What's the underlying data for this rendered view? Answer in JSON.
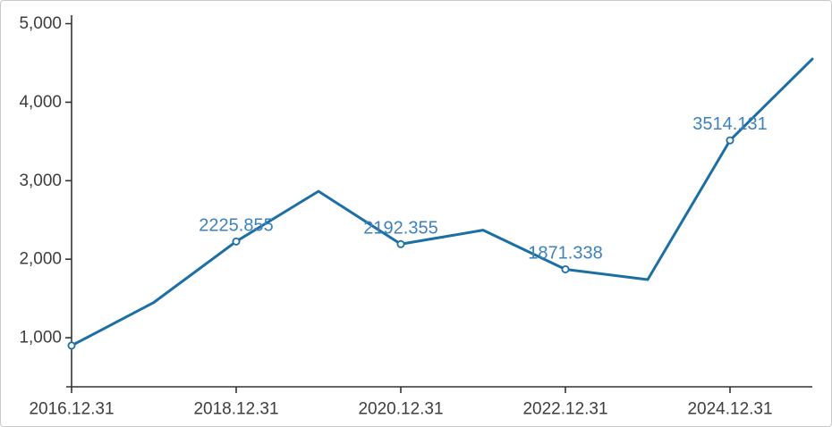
{
  "frame": {
    "background": "#ffffff",
    "border_color": "#c9c9c9"
  },
  "chart_data": {
    "type": "line",
    "title": "",
    "xlabel": "",
    "ylabel": "",
    "legend_position": "none",
    "grid": false,
    "x": [
      "2016.12.31",
      "2017.12.31",
      "2018.12.31",
      "2019.12.31",
      "2020.12.31",
      "2021.12.31",
      "2022.12.31",
      "2023.12.31",
      "2024.12.31",
      "2025.12.31"
    ],
    "series": [
      {
        "name": "value",
        "color": "#1c6fa5",
        "values": [
          900,
          1450,
          2225.855,
          2865,
          2192.355,
          2370,
          1871.338,
          1740,
          3514.131,
          4550
        ]
      }
    ],
    "point_labels": [
      {
        "index": 2,
        "text": "2225.855"
      },
      {
        "index": 4,
        "text": "2192.355"
      },
      {
        "index": 6,
        "text": "1871.338"
      },
      {
        "index": 8,
        "text": "3514.131"
      }
    ],
    "marker_indices": [
      0,
      2,
      4,
      6,
      8
    ],
    "x_axis": {
      "tick_indices": [
        0,
        2,
        4,
        6,
        8
      ],
      "tick_labels": [
        "2016.12.31",
        "2018.12.31",
        "2020.12.31",
        "2022.12.31",
        "2024.12.31"
      ]
    },
    "y_axis": {
      "tick_values": [
        1000,
        2000,
        3000,
        4000,
        5000
      ],
      "tick_labels": [
        "1,000",
        "2,000",
        "3,000",
        "4,000",
        "5,000"
      ]
    },
    "ylim": [
      375,
      5000
    ],
    "colors": {
      "line": "#1c6fa5",
      "point_label": "#3f82bb",
      "axis": "#333333",
      "tick_label": "#3d3d3d",
      "marker_fill": "#ffffff"
    }
  }
}
